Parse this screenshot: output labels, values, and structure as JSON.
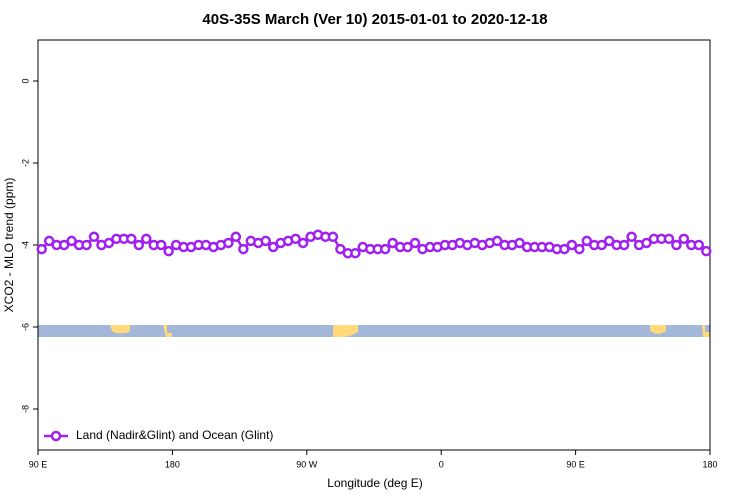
{
  "chart_data": {
    "type": "line",
    "title": "40S-35S March (Ver 10)   2015-01-01 to 2020-12-18",
    "x_label": "Longitude (deg E)",
    "y_label": "XCO2 - MLO trend (ppm)",
    "xlim": [
      90,
      540
    ],
    "ylim": [
      -9,
      1
    ],
    "xticks": [
      {
        "value": 90,
        "label": "90 E"
      },
      180,
      {
        "value": 270,
        "label": "90 W"
      },
      {
        "value": 360,
        "label": "0"
      },
      {
        "value": 450,
        "label": "90 E"
      },
      {
        "value": 540,
        "label": "180"
      }
    ],
    "yticks": [
      -8,
      -6,
      -4,
      -2,
      0
    ],
    "legend": "bottom-left",
    "series": [
      {
        "name": "Land (Nadir&Glint) and Ocean (Glint)",
        "color": "#a020f0",
        "x": [
          92.5,
          97.5,
          102.5,
          107.5,
          112.5,
          117.5,
          122.5,
          127.5,
          132.5,
          137.5,
          142.5,
          147.5,
          152.5,
          157.5,
          162.5,
          167.5,
          172.5,
          177.5,
          182.5,
          187.5,
          192.5,
          197.5,
          202.5,
          207.5,
          212.5,
          217.5,
          222.5,
          227.5,
          232.5,
          237.5,
          242.5,
          247.5,
          252.5,
          257.5,
          262.5,
          267.5,
          272.5,
          277.5,
          282.5,
          287.5,
          292.5,
          297.5,
          302.5,
          307.5,
          312.5,
          317.5,
          322.5,
          327.5,
          332.5,
          337.5,
          342.5,
          347.5,
          352.5,
          357.5,
          362.5,
          367.5,
          372.5,
          377.5,
          382.5,
          387.5,
          392.5,
          397.5,
          402.5,
          407.5,
          412.5,
          417.5,
          422.5,
          427.5,
          432.5,
          437.5,
          442.5,
          447.5,
          452.5,
          457.5,
          462.5,
          467.5,
          472.5,
          477.5,
          482.5,
          487.5,
          492.5,
          497.5,
          502.5,
          507.5,
          512.5,
          517.5,
          522.5,
          527.5,
          532.5,
          537.5
        ],
        "values": [
          -4.1,
          -3.9,
          -4.0,
          -4.0,
          -3.9,
          -4.0,
          -4.0,
          -3.8,
          -4.0,
          -3.95,
          -3.85,
          -3.85,
          -3.85,
          -4.0,
          -3.85,
          -4.0,
          -4.0,
          -4.15,
          -4.0,
          -4.05,
          -4.05,
          -4.0,
          -4.0,
          -4.05,
          -4.0,
          -3.95,
          -3.8,
          -4.1,
          -3.9,
          -3.95,
          -3.9,
          -4.05,
          -3.95,
          -3.9,
          -3.85,
          -3.95,
          -3.8,
          -3.75,
          -3.8,
          -3.8,
          -4.1,
          -4.2,
          -4.2,
          -4.05,
          -4.1,
          -4.1,
          -4.1,
          -3.95,
          -4.05,
          -4.05,
          -3.95,
          -4.1,
          -4.05,
          -4.05,
          -4.0,
          -4.0,
          -3.95,
          -4.0,
          -3.95,
          -4.0,
          -3.95,
          -3.9,
          -4.0,
          -4.0,
          -3.95,
          -4.05,
          -4.05,
          -4.05,
          -4.05,
          -4.1,
          -4.1,
          -4.0,
          -4.1,
          -3.9,
          -4.0,
          -4.0,
          -3.9,
          -4.0,
          -4.0,
          -3.8,
          -4.0,
          -3.95,
          -3.85,
          -3.85,
          -3.85,
          -4.0,
          -3.85,
          -4.0,
          -4.0,
          -4.15
        ]
      }
    ]
  }
}
